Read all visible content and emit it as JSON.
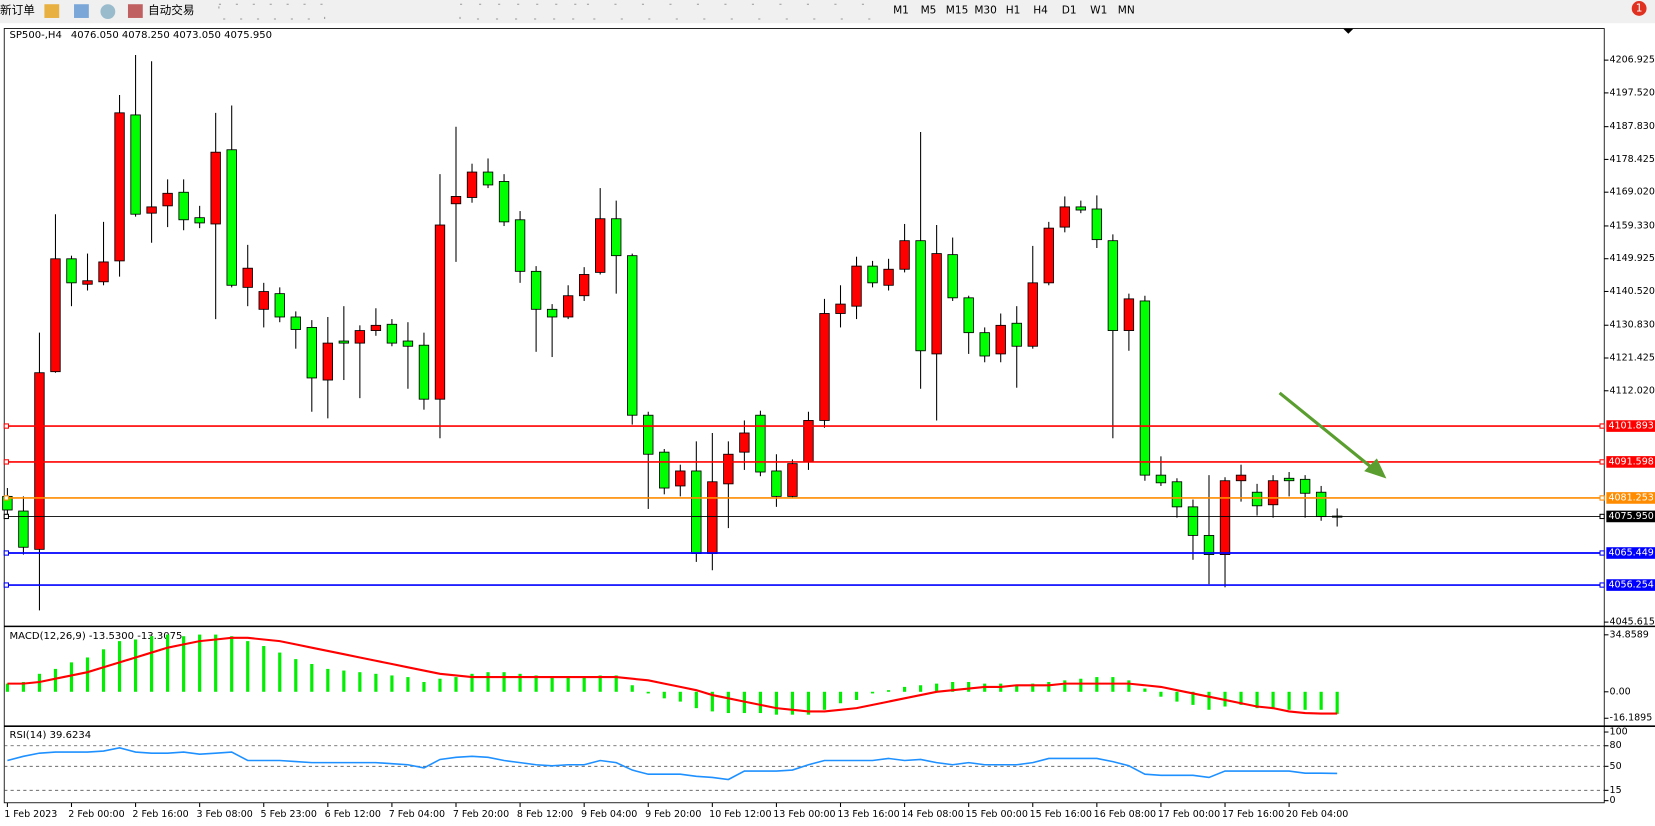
{
  "toolbar": {
    "new_order": "新订单",
    "auto_trade": "自动交易",
    "timeframes": [
      "M1",
      "M5",
      "M15",
      "M30",
      "H1",
      "H4",
      "D1",
      "W1",
      "MN"
    ],
    "badge": "1"
  },
  "chart_data": [
    {
      "type": "candlestick",
      "title": "SP500-,H4",
      "ohlc_text": "4076.050 4078.250 4073.050 4075.950",
      "categories": [
        "1 Feb 2023",
        null,
        null,
        null,
        "2 Feb 00:00",
        null,
        null,
        null,
        "2 Feb 16:00",
        null,
        null,
        null,
        "3 Feb 08:00",
        null,
        null,
        null,
        "5 Feb 23:00",
        null,
        null,
        null,
        "6 Feb 12:00",
        null,
        null,
        null,
        "7 Feb 04:00",
        null,
        null,
        null,
        "7 Feb 20:00",
        null,
        null,
        null,
        "8 Feb 12:00",
        null,
        null,
        null,
        "9 Feb 04:00",
        null,
        null,
        null,
        "9 Feb 20:00",
        null,
        null,
        null,
        "10 Feb 12:00",
        null,
        null,
        null,
        "13 Feb 00:00",
        null,
        null,
        null,
        "13 Feb 16:00",
        null,
        null,
        null,
        "14 Feb 08:00",
        null,
        null,
        null,
        "15 Feb 00:00",
        null,
        null,
        null,
        "15 Feb 16:00",
        null,
        null,
        null,
        "16 Feb 08:00",
        null,
        null,
        null,
        "17 Feb 00:00",
        null,
        null,
        null,
        "17 Feb 16:00",
        null,
        null,
        null,
        "20 Feb 04:00",
        null,
        null,
        null
      ],
      "open": [
        4081.7,
        4077.5,
        4066.5,
        4117.5,
        4149.9,
        4142.6,
        4143.3,
        4149.3,
        4191.2,
        4163.0,
        4165.1,
        4169.0,
        4161.7,
        4159.9,
        4181.2,
        4141.7,
        4135.4,
        4139.9,
        4133.2,
        4130.2,
        4115.1,
        4126.3,
        4125.7,
        4129.3,
        4131.1,
        4126.3,
        4125.1,
        4109.6,
        4165.7,
        4167.5,
        4174.8,
        4172.1,
        4161.1,
        4146.3,
        4135.4,
        4133.2,
        4139.3,
        4146.0,
        4161.4,
        4150.8,
        4105.0,
        4094.4,
        4084.7,
        4089.0,
        4065.3,
        4085.3,
        4094.4,
        4105.0,
        4089.0,
        4081.7,
        4091.7,
        4103.5,
        4134.2,
        4136.3,
        4147.8,
        4142.3,
        4146.9,
        4155.1,
        4122.6,
        4151.1,
        4138.7,
        4128.7,
        4122.6,
        4131.4,
        4124.8,
        4143.0,
        4159.0,
        4164.8,
        4164.2,
        4155.1,
        4129.3,
        4137.8,
        4087.8,
        4085.9,
        4078.7,
        4070.5,
        4065.0,
        4086.2,
        4082.9,
        4079.3,
        4086.9,
        4086.6,
        4082.9,
        4076.05
      ],
      "high": [
        4084.1,
        4081.7,
        4128.7,
        4162.7,
        4150.8,
        4151.4,
        4160.5,
        4196.9,
        4208.4,
        4206.6,
        4172.7,
        4172.7,
        4165.1,
        4191.8,
        4193.9,
        4153.9,
        4143.0,
        4141.7,
        4134.8,
        4132.3,
        4133.2,
        4136.3,
        4130.8,
        4135.7,
        4132.6,
        4131.7,
        4128.7,
        4174.2,
        4187.8,
        4177.2,
        4178.7,
        4174.2,
        4163.6,
        4147.8,
        4136.9,
        4142.3,
        4147.5,
        4170.2,
        4166.6,
        4151.4,
        4106.0,
        4095.3,
        4090.8,
        4097.5,
        4099.9,
        4097.5,
        4103.5,
        4106.3,
        4093.8,
        4092.3,
        4106.0,
        4138.4,
        4142.3,
        4150.5,
        4149.3,
        4149.9,
        4159.9,
        4186.3,
        4159.6,
        4156.0,
        4139.3,
        4130.2,
        4134.2,
        4136.3,
        4153.6,
        4160.5,
        4167.8,
        4166.6,
        4168.1,
        4156.9,
        4139.9,
        4139.3,
        4093.2,
        4086.9,
        4080.8,
        4087.8,
        4087.2,
        4090.8,
        4085.3,
        4087.8,
        4088.7,
        4087.8,
        4084.7,
        4078.25
      ],
      "low": [
        4075.6,
        4065.0,
        4049.0,
        4117.2,
        4136.3,
        4140.8,
        4142.3,
        4144.8,
        4162.0,
        4154.5,
        4159.0,
        4158.1,
        4158.7,
        4132.6,
        4141.7,
        4136.3,
        4130.2,
        4131.7,
        4124.1,
        4106.0,
        4104.1,
        4115.1,
        4109.9,
        4127.8,
        4124.8,
        4112.6,
        4106.6,
        4098.4,
        4149.0,
        4166.0,
        4170.2,
        4159.3,
        4143.0,
        4123.2,
        4121.7,
        4132.6,
        4137.8,
        4145.4,
        4139.9,
        4102.3,
        4078.1,
        4082.3,
        4081.7,
        4062.9,
        4060.5,
        4072.6,
        4089.3,
        4087.5,
        4078.7,
        4081.1,
        4089.3,
        4101.4,
        4130.2,
        4132.6,
        4141.7,
        4140.8,
        4146.0,
        4112.6,
        4103.5,
        4137.8,
        4122.6,
        4120.2,
        4120.2,
        4112.9,
        4124.1,
        4142.3,
        4157.5,
        4163.0,
        4153.0,
        4098.4,
        4123.5,
        4086.2,
        4084.7,
        4075.6,
        4063.5,
        4056.5,
        4055.6,
        4080.2,
        4076.2,
        4075.6,
        4081.7,
        4075.6,
        4074.7,
        4073.05
      ],
      "close": [
        4077.8,
        4067.1,
        4117.2,
        4149.9,
        4143.0,
        4143.6,
        4149.0,
        4191.8,
        4162.7,
        4164.8,
        4168.7,
        4161.1,
        4160.2,
        4180.5,
        4142.3,
        4147.2,
        4140.5,
        4133.2,
        4129.6,
        4115.7,
        4125.7,
        4125.7,
        4129.3,
        4130.8,
        4125.7,
        4124.8,
        4109.6,
        4159.6,
        4167.8,
        4174.8,
        4171.1,
        4160.5,
        4146.3,
        4135.4,
        4133.2,
        4139.3,
        4145.4,
        4161.4,
        4150.8,
        4105.0,
        4093.8,
        4084.1,
        4089.0,
        4065.3,
        4085.9,
        4093.8,
        4099.9,
        4088.7,
        4081.7,
        4091.1,
        4103.5,
        4134.2,
        4136.9,
        4147.8,
        4143.0,
        4146.9,
        4155.1,
        4123.5,
        4151.4,
        4138.7,
        4128.7,
        4122.0,
        4130.8,
        4124.8,
        4143.0,
        4158.7,
        4164.8,
        4163.9,
        4155.4,
        4129.3,
        4138.4,
        4087.8,
        4085.6,
        4078.7,
        4070.5,
        4065.0,
        4086.2,
        4087.8,
        4079.0,
        4086.2,
        4086.2,
        4082.6,
        4075.9,
        4075.95
      ],
      "up_color": "#ff0000",
      "down_color": "#00ff00",
      "ylim": [
        4045.0,
        4216.0
      ],
      "yticks": [
        4206.925,
        {
          "value": 4197.52,
          "label": "4197.520"
        },
        {
          "value": 4187.83,
          "label": "4187.830"
        },
        4178.425,
        {
          "value": 4169.02,
          "label": "4169.020"
        },
        {
          "value": 4159.33,
          "label": "4159.330"
        },
        4149.925,
        {
          "value": 4140.52,
          "label": "4140.520"
        },
        {
          "value": 4130.83,
          "label": "4130.830"
        },
        4121.425,
        {
          "value": 4112.02,
          "label": "4112.020"
        },
        4045.615
      ],
      "levels": [
        {
          "value": 4101.893,
          "label": "4101.893",
          "color": "#ff0000"
        },
        {
          "value": 4091.598,
          "label": "4091.598",
          "color": "#ff0000"
        },
        {
          "value": 4081.253,
          "label": "4081.253",
          "color": "#ff8c00"
        },
        {
          "value": 4075.95,
          "label": "4075.950",
          "color": "#000000"
        },
        {
          "value": 4065.449,
          "label": "4065.449",
          "color": "#0000ff"
        },
        {
          "value": 4056.254,
          "label": "4056.254",
          "color": "#0000ff"
        }
      ]
    },
    {
      "type": "macd",
      "title": "MACD(12,26,9) -13.5300 -13.3075",
      "color": "#00ee00",
      "signal_color": "#ff0000",
      "values": [
        5,
        6,
        11,
        14,
        18,
        21,
        26,
        31,
        32,
        34,
        35,
        34,
        35,
        35,
        34,
        31,
        28,
        24,
        20,
        17,
        14,
        13,
        12,
        11,
        10,
        9,
        6,
        8,
        9,
        11,
        12,
        12,
        11,
        10,
        9,
        9,
        9,
        10,
        10,
        4,
        -1,
        -4,
        -6,
        -10,
        -12,
        -13,
        -13,
        -13,
        -14,
        -14,
        -14,
        -11,
        -7,
        -5,
        -1,
        1,
        3,
        4,
        5,
        6,
        6,
        5,
        5,
        4,
        5,
        6,
        7,
        8,
        9,
        9,
        7,
        2,
        -3,
        -6,
        -8,
        -11,
        -9,
        -8,
        -10,
        -10,
        -11,
        -11,
        -11,
        -13.53
      ],
      "signal": [
        5,
        5,
        6,
        8,
        10,
        12,
        15,
        18,
        21,
        24,
        27,
        29,
        31,
        32,
        33,
        33,
        32,
        31,
        29,
        27,
        25,
        23,
        21,
        19,
        17,
        15,
        13,
        11,
        10,
        9,
        9,
        9,
        9,
        9,
        9,
        9,
        9,
        9,
        9,
        8,
        7,
        5,
        3,
        1,
        -2,
        -4,
        -6,
        -8,
        -10,
        -11,
        -12,
        -12,
        -11,
        -10,
        -8,
        -6,
        -4,
        -2,
        0,
        1,
        2,
        3,
        3,
        4,
        4,
        4,
        5,
        5,
        5,
        5,
        5,
        4,
        3,
        1,
        -1,
        -3,
        -5,
        -7,
        -9,
        -10,
        -12,
        -13,
        -13.3,
        -13.3075
      ],
      "ylim": [
        -20.07,
        38.74
      ],
      "yticks": [
        34.8589,
        {
          "value": 0,
          "label": "0.00"
        },
        -16.1895
      ]
    },
    {
      "type": "line",
      "title": "RSI(14) 39.6234",
      "color": "#1e90ff",
      "values": [
        58.5,
        64.6,
        69.2,
        70.8,
        70.8,
        70.8,
        72.3,
        76.9,
        70.8,
        69.2,
        69.2,
        70.8,
        67.7,
        69.2,
        70.8,
        58.5,
        58.5,
        58.5,
        56.9,
        55.4,
        55.4,
        55.4,
        55.4,
        55.4,
        53.8,
        52.3,
        47.7,
        60.0,
        63.1,
        64.6,
        63.1,
        58.5,
        55.4,
        52.3,
        50.8,
        52.3,
        52.3,
        58.5,
        55.4,
        44.6,
        38.5,
        38.5,
        38.5,
        35.4,
        33.8,
        30.8,
        43.1,
        43.1,
        43.1,
        44.6,
        52.3,
        58.5,
        58.5,
        58.5,
        58.5,
        61.5,
        58.5,
        60.0,
        55.4,
        52.3,
        55.4,
        52.3,
        52.3,
        52.3,
        55.4,
        61.5,
        61.5,
        61.5,
        61.5,
        56.9,
        50.8,
        38.5,
        36.9,
        36.9,
        36.9,
        33.8,
        43.1,
        43.1,
        43.1,
        43.1,
        43.1,
        40.0,
        40.0,
        39.6234
      ],
      "ylim": [
        -3.1,
        106.2
      ],
      "yticks": [
        100,
        80,
        50,
        15,
        0
      ],
      "levels": [
        80,
        50,
        15
      ]
    }
  ]
}
